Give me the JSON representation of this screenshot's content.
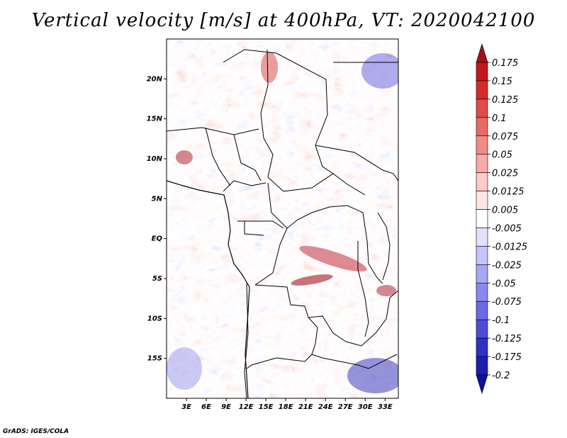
{
  "title": "Vertical velocity [m/s] at 400hPa, VT: 2020042100",
  "credit": "GrADS: IGES/COLA",
  "map": {
    "lon_range": [
      0,
      35
    ],
    "lat_range": [
      -20,
      25
    ],
    "lat_ticks": [
      {
        "value": 20,
        "label": "20N"
      },
      {
        "value": 15,
        "label": "15N"
      },
      {
        "value": 10,
        "label": "10N"
      },
      {
        "value": 5,
        "label": "5N"
      },
      {
        "value": 0,
        "label": "EQ"
      },
      {
        "value": -5,
        "label": "5S"
      },
      {
        "value": -10,
        "label": "10S"
      },
      {
        "value": -15,
        "label": "15S"
      }
    ],
    "lon_ticks": [
      {
        "value": 3,
        "label": "3E"
      },
      {
        "value": 6,
        "label": "6E"
      },
      {
        "value": 9,
        "label": "9E"
      },
      {
        "value": 12,
        "label": "12E"
      },
      {
        "value": 15,
        "label": "15E"
      },
      {
        "value": 18,
        "label": "18E"
      },
      {
        "value": 21,
        "label": "21E"
      },
      {
        "value": 24,
        "label": "24E"
      },
      {
        "value": 27,
        "label": "27E"
      },
      {
        "value": 30,
        "label": "30E"
      },
      {
        "value": 33,
        "label": "33E"
      }
    ]
  },
  "colorbar": {
    "levels": [
      "0.175",
      "0.15",
      "0.125",
      "0.1",
      "0.075",
      "0.05",
      "0.025",
      "0.0125",
      "0.005",
      "-0.005",
      "-0.0125",
      "-0.025",
      "-0.05",
      "-0.075",
      "-0.1",
      "-0.125",
      "-0.175",
      "-0.2"
    ],
    "colors": [
      "#a50f15",
      "#c3161f",
      "#d42a2a",
      "#e04a48",
      "#e86a66",
      "#f08c86",
      "#f6aba6",
      "#fbcbc7",
      "#fde6e3",
      "#ffffff",
      "#e2e2ff",
      "#c5c5fb",
      "#a7a7f5",
      "#8888ee",
      "#6a6ae6",
      "#4c4cd8",
      "#3030c4",
      "#1d1db0",
      "#10109a"
    ]
  }
}
